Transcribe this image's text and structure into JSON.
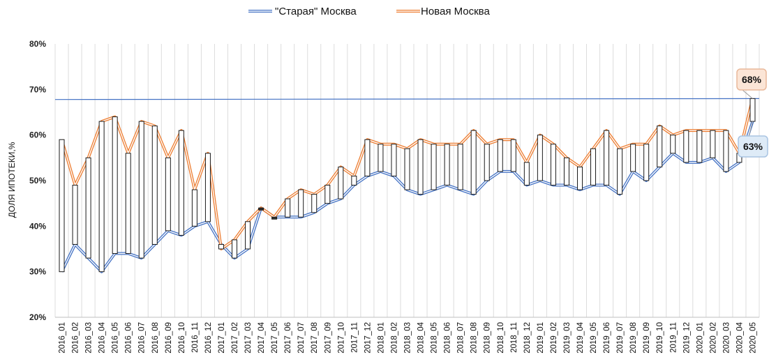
{
  "chart_data": {
    "type": "line",
    "title": "",
    "ylabel": "ДОЛЯ ИПОТЕКИ,%",
    "xlabel": "",
    "ylim": [
      20,
      80
    ],
    "yticks": [
      20,
      30,
      40,
      50,
      60,
      70,
      80
    ],
    "ytick_labels": [
      "20%",
      "30%",
      "40%",
      "50%",
      "60%",
      "70%",
      "80%"
    ],
    "grid": "vertical",
    "legend_position": "top-center",
    "categories": [
      "2016_01",
      "2016_02",
      "2016_03",
      "2016_04",
      "2016_05",
      "2016_06",
      "2016_07",
      "2016_08",
      "2016_09",
      "2016_10",
      "2016_11",
      "2016_12",
      "2017_01",
      "2017_02",
      "2017_03",
      "2017_04",
      "2017_05",
      "2017_06",
      "2017_07",
      "2017_08",
      "2017_09",
      "2017_10",
      "2017_11",
      "2017_12",
      "2018_01",
      "2018_02",
      "2018_03",
      "2018_04",
      "2018_05",
      "2018_06",
      "2018_07",
      "2018_08",
      "2018_09",
      "2018_10",
      "2018_11",
      "2018_12",
      "2019_01",
      "2019_02",
      "2019_03",
      "2019_04",
      "2019_05",
      "2019_06",
      "2019_07",
      "2019_08",
      "2019_09",
      "2019_10",
      "2019_11",
      "2019_12",
      "2020_01",
      "2020_02",
      "2020_03",
      "2020_04",
      "2020_05"
    ],
    "series": [
      {
        "name": "\"Старая\" Москва",
        "color": "#4472C4",
        "values": [
          30,
          36,
          33,
          30,
          34,
          34,
          33,
          36,
          39,
          38,
          40,
          41,
          36,
          33,
          35,
          44,
          42,
          42,
          42,
          43,
          45,
          46,
          49,
          51,
          52,
          51,
          48,
          47,
          48,
          49,
          48,
          47,
          50,
          52,
          52,
          49,
          50,
          49,
          49,
          48,
          49,
          49,
          47,
          52,
          50,
          53,
          56,
          54,
          54,
          55,
          52,
          54,
          63
        ]
      },
      {
        "name": "Новая Москва",
        "color": "#ED7D31",
        "values": [
          59,
          49,
          55,
          63,
          64,
          56,
          63,
          62,
          55,
          61,
          48,
          56,
          35,
          37,
          41,
          44,
          42,
          46,
          48,
          47,
          49,
          53,
          51,
          59,
          58,
          58,
          57,
          59,
          58,
          58,
          58,
          61,
          58,
          59,
          59,
          54,
          60,
          58,
          55,
          53,
          57,
          61,
          57,
          58,
          58,
          62,
          60,
          61,
          61,
          61,
          61,
          56,
          68
        ]
      }
    ],
    "trendline": {
      "start": 67.8,
      "end": 68.0,
      "color": "#4472C4"
    },
    "annotations": [
      {
        "text": "68%",
        "value": 68,
        "series": "Новая Москва",
        "fill": "#FBE5D6",
        "stroke": "#E9B89A"
      },
      {
        "text": "63%",
        "value": 63,
        "series": "\"Старая\" Москва",
        "fill": "#DEEBF7",
        "stroke": "#A9C4E2"
      }
    ]
  }
}
